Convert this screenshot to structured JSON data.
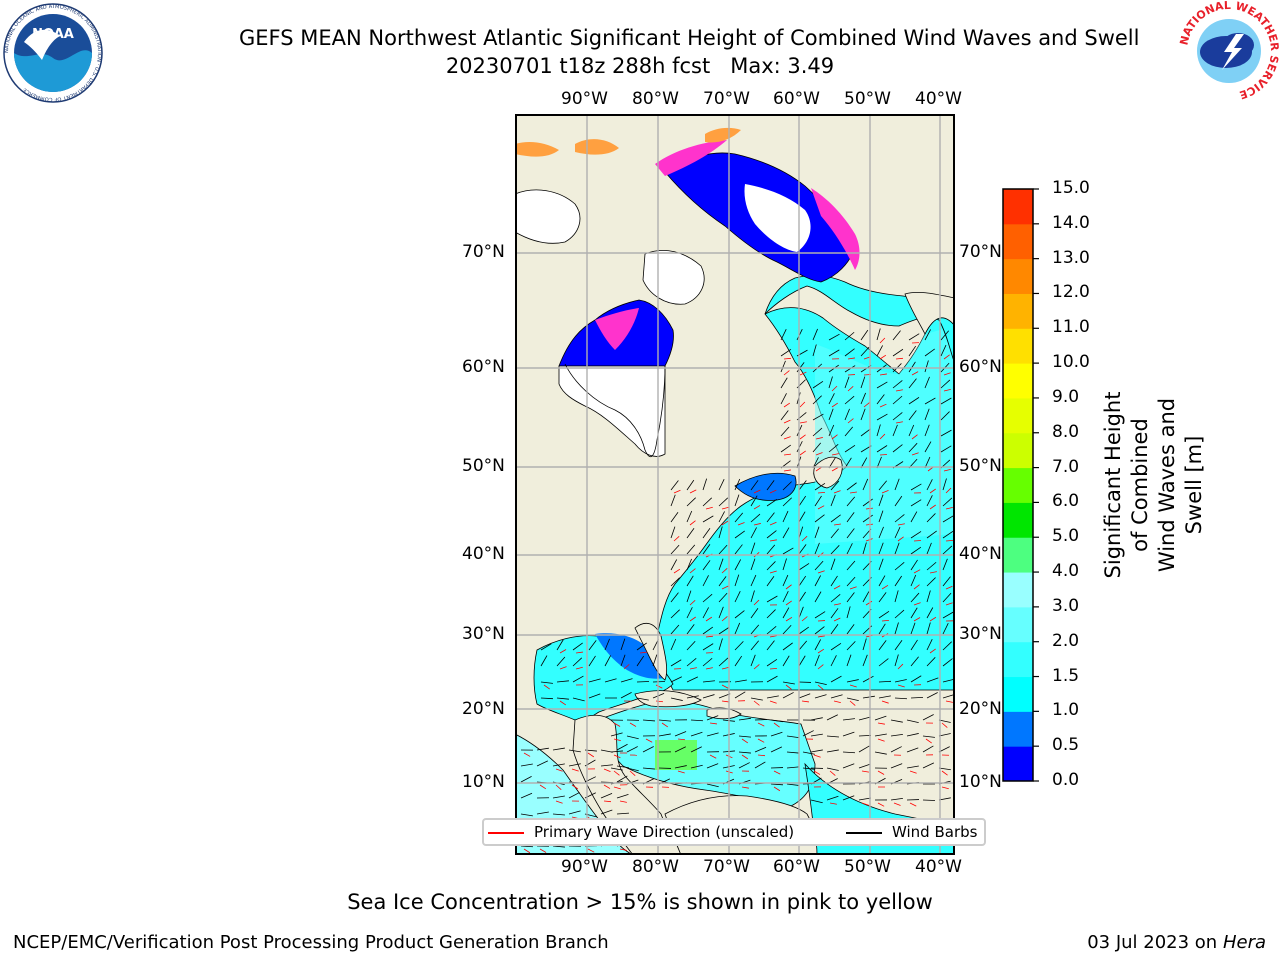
{
  "header": {
    "title_line1": "GEFS MEAN Northwest Atlantic Significant Height of Combined Wind Waves and Swell",
    "title_line2": "20230701 t18z 288h fcst   Max: 3.49"
  },
  "logos": {
    "noaa_text": "NOAA",
    "noaa_ring": "NATIONAL OCEANIC AND ATMOSPHERIC ADMINISTRATION · U.S. DEPARTMENT OF COMMERCE",
    "nws_ring": "NATIONAL WEATHER SERVICE"
  },
  "map": {
    "lon_labels": [
      "90°W",
      "80°W",
      "70°W",
      "60°W",
      "50°W",
      "40°W"
    ],
    "lat_labels": [
      "70°N",
      "60°N",
      "50°N",
      "40°N",
      "30°N",
      "20°N",
      "10°N"
    ],
    "colors": {
      "ocean_low": "#33ffff",
      "ocean_mid": "#00ffff",
      "ocean_light": "#99ffff",
      "shallow_blue": "#0077ff",
      "deep_blue": "#0000ff",
      "land": "#f0eedc",
      "ice_pink": "#ff33cc",
      "ice_orange": "#ffa040",
      "grid": "#b0b0b0",
      "wave_arrow": "#ff0000",
      "wind_barb": "#000000"
    }
  },
  "legend": {
    "wave_label": "Primary Wave Direction (unscaled)",
    "barb_label": "Wind Barbs"
  },
  "colorbar": {
    "label_line1": "Significant Height of Combined",
    "label_line2": "Wind Waves and Swell [m]",
    "ticks": [
      "0.0",
      "0.5",
      "1.0",
      "1.5",
      "2.0",
      "3.0",
      "4.0",
      "5.0",
      "6.0",
      "7.0",
      "8.0",
      "9.0",
      "10.0",
      "11.0",
      "12.0",
      "13.0",
      "14.0",
      "15.0"
    ],
    "colors": [
      "#0000ff",
      "#0077ff",
      "#00ffff",
      "#33ffff",
      "#66ffff",
      "#99ffff",
      "#4dff80",
      "#00e600",
      "#66ff00",
      "#ccff00",
      "#e6ff00",
      "#ffff00",
      "#ffe000",
      "#ffb300",
      "#ff8800",
      "#ff6000",
      "#ff3000",
      "#ff0000"
    ]
  },
  "footer": {
    "note": "Sea Ice Concentration > 15% is shown in pink to yellow",
    "left": "NCEP/EMC/Verification Post Processing Product Generation Branch",
    "right_date": "03 Jul 2023 on ",
    "right_host": "Hera"
  }
}
